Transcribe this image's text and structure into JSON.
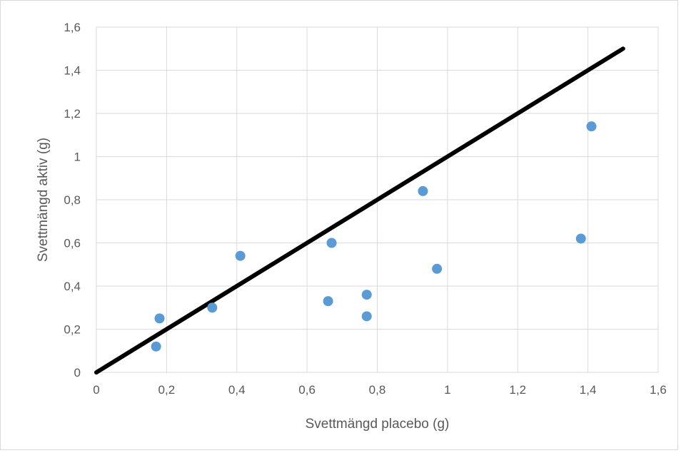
{
  "chart_data": {
    "type": "scatter",
    "title": "",
    "xlabel": "Svettmängd placebo (g)",
    "ylabel": "Svettmängd aktiv (g)",
    "xlim": [
      0,
      1.6
    ],
    "ylim": [
      0,
      1.6
    ],
    "x_ticks": [
      "0",
      "0,2",
      "0,4",
      "0,6",
      "0,8",
      "1",
      "1,2",
      "1,4",
      "1,6"
    ],
    "y_ticks": [
      "0",
      "0,2",
      "0,4",
      "0,6",
      "0,8",
      "1",
      "1,2",
      "1,4",
      "1,6"
    ],
    "grid": true,
    "series": [
      {
        "type": "scatter",
        "color": "#5b9bd5",
        "points": [
          {
            "x": 0.17,
            "y": 0.12
          },
          {
            "x": 0.18,
            "y": 0.25
          },
          {
            "x": 0.33,
            "y": 0.3
          },
          {
            "x": 0.41,
            "y": 0.54
          },
          {
            "x": 0.66,
            "y": 0.33
          },
          {
            "x": 0.67,
            "y": 0.6
          },
          {
            "x": 0.77,
            "y": 0.36
          },
          {
            "x": 0.77,
            "y": 0.26
          },
          {
            "x": 0.93,
            "y": 0.84
          },
          {
            "x": 0.97,
            "y": 0.48
          },
          {
            "x": 1.38,
            "y": 0.62
          },
          {
            "x": 1.41,
            "y": 1.14
          }
        ]
      },
      {
        "type": "line",
        "color": "#000000",
        "points": [
          {
            "x": 0,
            "y": 0
          },
          {
            "x": 1.5,
            "y": 1.5
          }
        ]
      }
    ]
  }
}
